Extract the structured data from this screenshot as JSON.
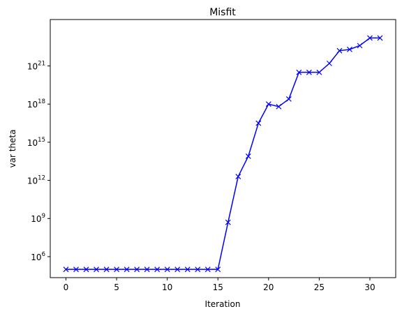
{
  "chart_data": {
    "type": "line",
    "title": "Misfit",
    "xlabel": "Iteration",
    "ylabel": "var theta",
    "yscale": "log",
    "xlim": [
      -1.55,
      32.55
    ],
    "ylim_log10": [
      4.35,
      24.65
    ],
    "grid": false,
    "legend": "none",
    "color": "#0000ff",
    "marker": "x",
    "x_ticks": [
      0,
      5,
      10,
      15,
      20,
      25,
      30
    ],
    "y_ticks": [
      {
        "exp": 6,
        "base": "10",
        "sup": "6"
      },
      {
        "exp": 9,
        "base": "10",
        "sup": "9"
      },
      {
        "exp": 12,
        "base": "10",
        "sup": "12"
      },
      {
        "exp": 15,
        "base": "10",
        "sup": "15"
      },
      {
        "exp": 18,
        "base": "10",
        "sup": "18"
      },
      {
        "exp": 21,
        "base": "10",
        "sup": "21"
      }
    ],
    "series": [
      {
        "x": [
          0,
          1,
          2,
          3,
          4,
          5,
          6,
          7,
          8,
          9,
          10,
          11,
          12,
          13,
          14,
          15,
          16,
          17,
          18,
          19,
          20,
          21,
          22,
          23,
          24,
          25,
          26,
          27,
          28,
          29,
          30,
          31
        ],
        "log10_y": [
          5.0,
          5.0,
          5.0,
          5.0,
          5.0,
          5.0,
          5.0,
          5.0,
          5.0,
          5.0,
          5.0,
          5.0,
          5.0,
          5.0,
          5.0,
          5.0,
          8.7,
          12.3,
          13.9,
          16.5,
          18.0,
          17.8,
          18.4,
          20.5,
          20.5,
          20.5,
          21.2,
          22.2,
          22.3,
          22.6,
          23.2,
          23.2
        ]
      }
    ]
  }
}
